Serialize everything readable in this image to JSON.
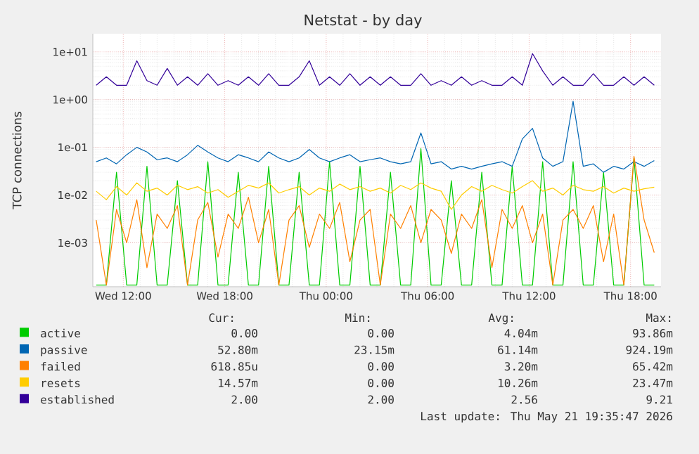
{
  "chart_data": {
    "type": "line",
    "title": "Netstat - by day",
    "ylabel": "TCP connections",
    "log": true,
    "grid": true,
    "legend": "bottom",
    "xlim": [
      "2026-05-20T10:12",
      "2026-05-21T19:48"
    ],
    "ylim": [
      0.00012,
      24
    ],
    "xticks": [
      {
        "value": "2026-05-20T12:00",
        "label": "Wed 12:00"
      },
      {
        "value": "2026-05-20T18:00",
        "label": "Wed 18:00"
      },
      {
        "value": "2026-05-21T00:00",
        "label": "Thu 00:00"
      },
      {
        "value": "2026-05-21T06:00",
        "label": "Thu 06:00"
      },
      {
        "value": "2026-05-21T12:00",
        "label": "Thu 12:00"
      },
      {
        "value": "2026-05-21T18:00",
        "label": "Thu 18:00"
      }
    ],
    "yticks": [
      {
        "value": 0.001,
        "label": "1e-03"
      },
      {
        "value": 0.01,
        "label": "1e-02"
      },
      {
        "value": 0.1,
        "label": "1e-01"
      },
      {
        "value": 1,
        "label": "1e+00"
      },
      {
        "value": 10,
        "label": "1e+01"
      }
    ],
    "x": [
      "2026-05-20T10:24",
      "2026-05-20T11:00",
      "2026-05-20T11:36",
      "2026-05-20T12:12",
      "2026-05-20T12:48",
      "2026-05-20T13:24",
      "2026-05-20T14:00",
      "2026-05-20T14:36",
      "2026-05-20T15:12",
      "2026-05-20T15:48",
      "2026-05-20T16:24",
      "2026-05-20T17:00",
      "2026-05-20T17:36",
      "2026-05-20T18:12",
      "2026-05-20T18:48",
      "2026-05-20T19:24",
      "2026-05-20T20:00",
      "2026-05-20T20:36",
      "2026-05-20T21:12",
      "2026-05-20T21:48",
      "2026-05-20T22:24",
      "2026-05-20T23:00",
      "2026-05-20T23:36",
      "2026-05-21T00:12",
      "2026-05-21T00:48",
      "2026-05-21T01:24",
      "2026-05-21T02:00",
      "2026-05-21T02:36",
      "2026-05-21T03:12",
      "2026-05-21T03:48",
      "2026-05-21T04:24",
      "2026-05-21T05:00",
      "2026-05-21T05:36",
      "2026-05-21T06:12",
      "2026-05-21T06:48",
      "2026-05-21T07:24",
      "2026-05-21T08:00",
      "2026-05-21T08:36",
      "2026-05-21T09:12",
      "2026-05-21T09:48",
      "2026-05-21T10:24",
      "2026-05-21T11:00",
      "2026-05-21T11:36",
      "2026-05-21T12:12",
      "2026-05-21T12:48",
      "2026-05-21T13:24",
      "2026-05-21T14:00",
      "2026-05-21T14:36",
      "2026-05-21T15:12",
      "2026-05-21T15:48",
      "2026-05-21T16:24",
      "2026-05-21T17:00",
      "2026-05-21T17:36",
      "2026-05-21T18:12",
      "2026-05-21T18:48",
      "2026-05-21T19:24"
    ],
    "series": [
      {
        "name": "active",
        "color": "#00cc00",
        "values": [
          0.00013,
          0.00013,
          0.03,
          0.00013,
          0.00013,
          0.04,
          0.00013,
          0.00013,
          0.02,
          0.00013,
          0.00013,
          0.05,
          0.00013,
          0.00013,
          0.03,
          0.00013,
          0.00013,
          0.04,
          0.00013,
          0.00013,
          0.03,
          0.00013,
          0.00013,
          0.05,
          0.00013,
          0.00013,
          0.04,
          0.00013,
          0.00013,
          0.03,
          0.00013,
          0.00013,
          0.094,
          0.00013,
          0.00013,
          0.02,
          0.00013,
          0.00013,
          0.03,
          0.00013,
          0.00013,
          0.04,
          0.00013,
          0.00013,
          0.05,
          0.00013,
          0.00013,
          0.05,
          0.00013,
          0.00013,
          0.03,
          0.00013,
          0.00013,
          0.06,
          0.00013,
          0.00013
        ]
      },
      {
        "name": "passive",
        "color": "#0066b3",
        "values": [
          0.05,
          0.06,
          0.045,
          0.07,
          0.1,
          0.08,
          0.055,
          0.06,
          0.05,
          0.07,
          0.11,
          0.08,
          0.06,
          0.05,
          0.07,
          0.06,
          0.05,
          0.08,
          0.06,
          0.05,
          0.06,
          0.09,
          0.06,
          0.05,
          0.06,
          0.07,
          0.05,
          0.055,
          0.06,
          0.05,
          0.045,
          0.05,
          0.2,
          0.045,
          0.05,
          0.035,
          0.04,
          0.035,
          0.04,
          0.045,
          0.05,
          0.04,
          0.15,
          0.25,
          0.06,
          0.04,
          0.05,
          0.92,
          0.04,
          0.045,
          0.03,
          0.04,
          0.035,
          0.05,
          0.04,
          0.0528
        ]
      },
      {
        "name": "failed",
        "color": "#ff8000",
        "values": [
          0.003,
          0.00013,
          0.005,
          0.001,
          0.008,
          0.0003,
          0.004,
          0.002,
          0.006,
          0.00013,
          0.003,
          0.007,
          0.0005,
          0.004,
          0.002,
          0.009,
          0.001,
          0.005,
          0.00013,
          0.003,
          0.006,
          0.0008,
          0.004,
          0.002,
          0.007,
          0.0004,
          0.003,
          0.005,
          0.00013,
          0.004,
          0.002,
          0.006,
          0.001,
          0.005,
          0.003,
          0.0006,
          0.004,
          0.002,
          0.008,
          0.0003,
          0.005,
          0.002,
          0.006,
          0.001,
          0.004,
          0.00013,
          0.003,
          0.005,
          0.002,
          0.006,
          0.0004,
          0.004,
          0.00013,
          0.065,
          0.003,
          0.00062
        ]
      },
      {
        "name": "resets",
        "color": "#ffcc00",
        "values": [
          0.012,
          0.008,
          0.015,
          0.01,
          0.018,
          0.012,
          0.014,
          0.01,
          0.016,
          0.013,
          0.015,
          0.011,
          0.013,
          0.009,
          0.012,
          0.016,
          0.014,
          0.018,
          0.011,
          0.013,
          0.015,
          0.01,
          0.014,
          0.012,
          0.017,
          0.013,
          0.015,
          0.012,
          0.014,
          0.011,
          0.016,
          0.013,
          0.018,
          0.014,
          0.012,
          0.005,
          0.01,
          0.015,
          0.012,
          0.016,
          0.013,
          0.011,
          0.015,
          0.02,
          0.012,
          0.014,
          0.01,
          0.016,
          0.013,
          0.012,
          0.015,
          0.011,
          0.014,
          0.012,
          0.0135,
          0.01457
        ]
      },
      {
        "name": "established",
        "color": "#330099",
        "values": [
          2,
          3,
          2,
          2,
          6.5,
          2.5,
          2,
          4.5,
          2,
          3,
          2,
          3.5,
          2,
          2.5,
          2,
          3,
          2,
          3.5,
          2,
          2,
          3,
          6.5,
          2,
          3,
          2,
          3.5,
          2,
          3,
          2,
          3,
          2,
          2,
          3.5,
          2,
          2.5,
          2,
          3,
          2,
          2.5,
          2,
          2,
          3,
          2,
          9.2,
          4,
          2,
          3,
          2,
          2,
          3.5,
          2,
          2,
          3,
          2,
          3,
          2
        ]
      }
    ],
    "annotations": [
      "Cur:",
      "Min:",
      "Avg:",
      "Max:",
      "0.00",
      "0.00",
      "4.04m",
      "93.86m",
      "52.80m",
      "23.15m",
      "61.14m",
      "924.19m",
      "618.85u",
      "0.00",
      "3.20m",
      "65.42m",
      "14.57m",
      "0.00",
      "10.26m",
      "23.47m",
      "2.00",
      "2.00",
      "2.56",
      "9.21",
      "Last update: Thu May 21 19:35:47 2026"
    ]
  }
}
